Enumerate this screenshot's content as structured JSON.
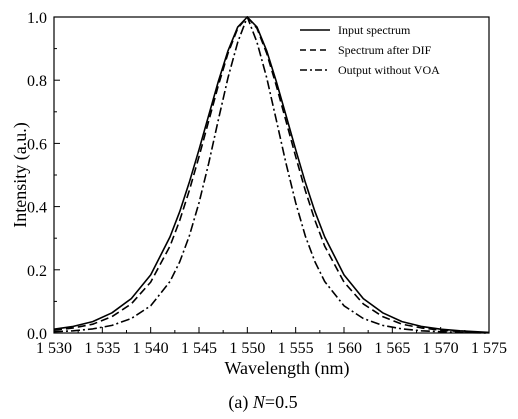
{
  "chart_data": {
    "type": "line",
    "xlabel": "Wavelength (nm)",
    "ylabel": "Intensity (a.u.)",
    "xlim": [
      1530,
      1575
    ],
    "ylim": [
      0,
      1.0
    ],
    "x_ticks": [
      1530,
      1535,
      1540,
      1545,
      1550,
      1555,
      1560,
      1565,
      1570,
      1575
    ],
    "x_tick_labels": [
      "1 530",
      "1 535",
      "1 540",
      "1 545",
      "1 550",
      "1 555",
      "1 560",
      "1 565",
      "1 570",
      "1 575"
    ],
    "y_ticks": [
      0,
      0.2,
      0.4,
      0.6,
      0.8,
      1.0
    ],
    "y_tick_labels": [
      "0.0",
      "0.2",
      "0.4",
      "0.6",
      "0.8",
      "1.0"
    ],
    "grid": false,
    "legend_position": "top-right",
    "caption_prefix": "(a) ",
    "caption_var": "N",
    "caption_suffix": "=0.5",
    "series": [
      {
        "name": "Input spectrum",
        "line_style": "solid",
        "x": [
          1530,
          1532,
          1534,
          1536,
          1538,
          1540,
          1542,
          1543,
          1544,
          1545,
          1546,
          1547,
          1548,
          1549,
          1550,
          1551,
          1552,
          1553,
          1554,
          1555,
          1556,
          1557,
          1558,
          1560,
          1562,
          1564,
          1566,
          1568,
          1570,
          1572,
          1575
        ],
        "y": [
          0.012,
          0.021,
          0.036,
          0.064,
          0.109,
          0.184,
          0.304,
          0.384,
          0.477,
          0.58,
          0.689,
          0.796,
          0.893,
          0.968,
          1.0,
          0.968,
          0.893,
          0.796,
          0.689,
          0.58,
          0.477,
          0.384,
          0.304,
          0.184,
          0.109,
          0.064,
          0.036,
          0.021,
          0.012,
          0.007,
          0.002
        ]
      },
      {
        "name": "Spectrum after DIF",
        "line_style": "dashed",
        "x": [
          1530,
          1532,
          1534,
          1536,
          1538,
          1540,
          1542,
          1543,
          1544,
          1545,
          1546,
          1547,
          1548,
          1549,
          1550,
          1551,
          1552,
          1553,
          1554,
          1555,
          1556,
          1557,
          1558,
          1560,
          1562,
          1564,
          1566,
          1568,
          1570,
          1572,
          1575
        ],
        "y": [
          0.009,
          0.016,
          0.028,
          0.052,
          0.092,
          0.161,
          0.275,
          0.356,
          0.451,
          0.558,
          0.671,
          0.783,
          0.885,
          0.964,
          1.0,
          0.964,
          0.885,
          0.783,
          0.671,
          0.558,
          0.451,
          0.356,
          0.275,
          0.161,
          0.092,
          0.052,
          0.028,
          0.016,
          0.009,
          0.005,
          0.001
        ]
      },
      {
        "name": "Output without VOA",
        "line_style": "dash-dot",
        "x": [
          1530,
          1532,
          1534,
          1536,
          1538,
          1540,
          1542,
          1543,
          1544,
          1545,
          1546,
          1547,
          1548,
          1549,
          1550,
          1551,
          1552,
          1553,
          1554,
          1555,
          1556,
          1557,
          1558,
          1560,
          1562,
          1564,
          1566,
          1568,
          1570,
          1572,
          1575
        ],
        "y": [
          0.004,
          0.007,
          0.013,
          0.024,
          0.046,
          0.086,
          0.163,
          0.225,
          0.307,
          0.412,
          0.537,
          0.674,
          0.808,
          0.92,
          1.0,
          0.92,
          0.808,
          0.674,
          0.537,
          0.412,
          0.307,
          0.225,
          0.163,
          0.086,
          0.046,
          0.024,
          0.013,
          0.007,
          0.004,
          0.002,
          0.0
        ]
      }
    ]
  }
}
